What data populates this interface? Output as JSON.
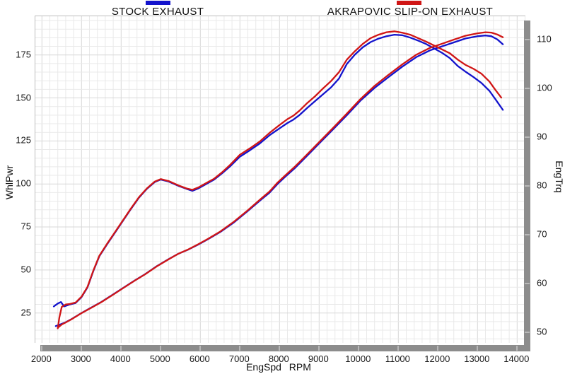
{
  "legend": [
    {
      "label": "STOCK EXHAUST",
      "color": "#1313cc"
    },
    {
      "label": "AKRAPOVIC SLIP-ON EXHAUST",
      "color": "#d01616"
    }
  ],
  "chart_data": {
    "type": "line",
    "title": "",
    "xlabel": "EngSpd RPM",
    "x_range": [
      2000,
      14200
    ],
    "x_ticks": [
      2000,
      3000,
      4000,
      5000,
      6000,
      7000,
      8000,
      9000,
      10000,
      11000,
      12000,
      13000,
      14000
    ],
    "x_minor_step": 200,
    "grid": true,
    "legend_position": "top",
    "left_axis": {
      "label": "WhlPwr",
      "ticks": [
        25,
        50,
        75,
        100,
        125,
        150,
        175
      ],
      "range": [
        7,
        197
      ]
    },
    "right_axis": {
      "label": "EngTrq",
      "ticks": [
        50,
        60,
        70,
        80,
        90,
        100,
        110
      ],
      "range": [
        47,
        115
      ]
    },
    "series": [
      {
        "name": "STOCK EXHAUST - WhlPwr",
        "legend": "STOCK EXHAUST",
        "axis": "left",
        "color": "#1313cc",
        "points": [
          [
            2350,
            17.4
          ],
          [
            2450,
            18.2
          ],
          [
            2600,
            19.6
          ],
          [
            2750,
            21.5
          ],
          [
            3000,
            25.0
          ],
          [
            3250,
            28.2
          ],
          [
            3500,
            31.4
          ],
          [
            3800,
            35.8
          ],
          [
            4100,
            40.3
          ],
          [
            4350,
            44.0
          ],
          [
            4600,
            47.5
          ],
          [
            4900,
            52.2
          ],
          [
            5200,
            56.3
          ],
          [
            5450,
            59.5
          ],
          [
            5700,
            61.9
          ],
          [
            5950,
            64.8
          ],
          [
            6200,
            68.0
          ],
          [
            6500,
            72.0
          ],
          [
            6850,
            77.7
          ],
          [
            7200,
            84.3
          ],
          [
            7550,
            91.2
          ],
          [
            7750,
            95.0
          ],
          [
            7950,
            100.0
          ],
          [
            8150,
            104.3
          ],
          [
            8400,
            109.5
          ],
          [
            8650,
            115.3
          ],
          [
            9000,
            123.5
          ],
          [
            9350,
            131.7
          ],
          [
            9700,
            140.0
          ],
          [
            10050,
            148.6
          ],
          [
            10400,
            155.8
          ],
          [
            10750,
            162.1
          ],
          [
            11100,
            168.2
          ],
          [
            11450,
            173.7
          ],
          [
            11800,
            177.7
          ],
          [
            12100,
            180.0
          ],
          [
            12400,
            182.3
          ],
          [
            12700,
            184.6
          ],
          [
            13000,
            185.9
          ],
          [
            13200,
            186.3
          ],
          [
            13350,
            185.9
          ],
          [
            13500,
            184.0
          ],
          [
            13640,
            181.2
          ]
        ]
      },
      {
        "name": "AKRAPOVIC SLIP-ON EXHAUST - WhlPwr",
        "legend": "AKRAPOVIC SLIP-ON EXHAUST",
        "axis": "left",
        "color": "#d01616",
        "points": [
          [
            2400,
            16.4
          ],
          [
            2500,
            18.3
          ],
          [
            2600,
            19.5
          ],
          [
            2750,
            21.4
          ],
          [
            3000,
            24.9
          ],
          [
            3250,
            28.1
          ],
          [
            3500,
            31.3
          ],
          [
            3800,
            35.7
          ],
          [
            4100,
            40.2
          ],
          [
            4350,
            43.9
          ],
          [
            4600,
            47.4
          ],
          [
            4900,
            52.1
          ],
          [
            5200,
            56.2
          ],
          [
            5450,
            59.5
          ],
          [
            5700,
            62.0
          ],
          [
            5950,
            65.0
          ],
          [
            6200,
            68.2
          ],
          [
            6500,
            72.3
          ],
          [
            6850,
            78.1
          ],
          [
            7200,
            84.7
          ],
          [
            7550,
            91.8
          ],
          [
            7750,
            95.7
          ],
          [
            7950,
            100.8
          ],
          [
            8150,
            105.1
          ],
          [
            8400,
            110.3
          ],
          [
            8650,
            116.1
          ],
          [
            9000,
            124.3
          ],
          [
            9350,
            132.5
          ],
          [
            9700,
            140.9
          ],
          [
            10050,
            149.5
          ],
          [
            10400,
            157.0
          ],
          [
            10750,
            163.4
          ],
          [
            11100,
            169.5
          ],
          [
            11450,
            175.1
          ],
          [
            11800,
            179.1
          ],
          [
            12100,
            181.5
          ],
          [
            12400,
            183.9
          ],
          [
            12700,
            186.2
          ],
          [
            13000,
            187.6
          ],
          [
            13200,
            188.2
          ],
          [
            13350,
            188.0
          ],
          [
            13500,
            186.9
          ],
          [
            13640,
            185.3
          ]
        ]
      },
      {
        "name": "STOCK EXHAUST - EngTrq",
        "legend": "STOCK EXHAUST",
        "axis": "right",
        "color": "#1313cc",
        "points": [
          [
            2300,
            55.3
          ],
          [
            2400,
            55.9
          ],
          [
            2480,
            56.2
          ],
          [
            2560,
            55.3
          ],
          [
            2700,
            55.7
          ],
          [
            2850,
            56.0
          ],
          [
            3000,
            57.2
          ],
          [
            3150,
            59.2
          ],
          [
            3300,
            62.6
          ],
          [
            3450,
            65.6
          ],
          [
            3650,
            68.1
          ],
          [
            3850,
            70.5
          ],
          [
            4050,
            72.9
          ],
          [
            4250,
            75.3
          ],
          [
            4450,
            77.6
          ],
          [
            4650,
            79.4
          ],
          [
            4850,
            80.8
          ],
          [
            5000,
            81.3
          ],
          [
            5200,
            80.9
          ],
          [
            5450,
            80.0
          ],
          [
            5650,
            79.4
          ],
          [
            5800,
            79.0
          ],
          [
            5950,
            79.5
          ],
          [
            6150,
            80.4
          ],
          [
            6350,
            81.3
          ],
          [
            6550,
            82.6
          ],
          [
            6750,
            84.0
          ],
          [
            7000,
            86.0
          ],
          [
            7250,
            87.3
          ],
          [
            7500,
            88.7
          ],
          [
            7750,
            90.4
          ],
          [
            8000,
            91.8
          ],
          [
            8200,
            92.9
          ],
          [
            8350,
            93.6
          ],
          [
            8500,
            94.5
          ],
          [
            8700,
            96.0
          ],
          [
            8900,
            97.4
          ],
          [
            9100,
            98.8
          ],
          [
            9300,
            100.2
          ],
          [
            9500,
            102.0
          ],
          [
            9700,
            105.0
          ],
          [
            9900,
            106.9
          ],
          [
            10100,
            108.4
          ],
          [
            10300,
            109.5
          ],
          [
            10500,
            110.2
          ],
          [
            10700,
            110.7
          ],
          [
            10900,
            111.0
          ],
          [
            11100,
            110.9
          ],
          [
            11300,
            110.4
          ],
          [
            11500,
            109.8
          ],
          [
            11700,
            109.1
          ],
          [
            11900,
            108.2
          ],
          [
            12100,
            107.3
          ],
          [
            12300,
            106.2
          ],
          [
            12500,
            104.6
          ],
          [
            12700,
            103.4
          ],
          [
            12900,
            102.3
          ],
          [
            13100,
            101.1
          ],
          [
            13300,
            99.5
          ],
          [
            13450,
            97.8
          ],
          [
            13640,
            95.6
          ]
        ]
      },
      {
        "name": "AKRAPOVIC SLIP-ON EXHAUST - EngTrq",
        "legend": "AKRAPOVIC SLIP-ON EXHAUST",
        "axis": "right",
        "color": "#d01616",
        "points": [
          [
            2400,
            50.8
          ],
          [
            2440,
            53.0
          ],
          [
            2500,
            55.2
          ],
          [
            2600,
            55.7
          ],
          [
            2700,
            55.8
          ],
          [
            2850,
            56.1
          ],
          [
            3000,
            57.3
          ],
          [
            3150,
            59.3
          ],
          [
            3300,
            62.7
          ],
          [
            3450,
            65.7
          ],
          [
            3650,
            68.2
          ],
          [
            3850,
            70.6
          ],
          [
            4050,
            73.0
          ],
          [
            4250,
            75.4
          ],
          [
            4450,
            77.7
          ],
          [
            4650,
            79.5
          ],
          [
            4850,
            80.9
          ],
          [
            5000,
            81.4
          ],
          [
            5200,
            81.0
          ],
          [
            5450,
            80.1
          ],
          [
            5650,
            79.5
          ],
          [
            5800,
            79.2
          ],
          [
            5950,
            79.7
          ],
          [
            6150,
            80.6
          ],
          [
            6350,
            81.5
          ],
          [
            6550,
            82.8
          ],
          [
            6750,
            84.3
          ],
          [
            7000,
            86.4
          ],
          [
            7250,
            87.7
          ],
          [
            7500,
            89.1
          ],
          [
            7750,
            90.9
          ],
          [
            8000,
            92.5
          ],
          [
            8200,
            93.7
          ],
          [
            8350,
            94.4
          ],
          [
            8500,
            95.4
          ],
          [
            8700,
            97.0
          ],
          [
            8900,
            98.4
          ],
          [
            9100,
            100.0
          ],
          [
            9300,
            101.5
          ],
          [
            9500,
            103.3
          ],
          [
            9700,
            105.9
          ],
          [
            9900,
            107.6
          ],
          [
            10100,
            109.1
          ],
          [
            10300,
            110.3
          ],
          [
            10500,
            111.0
          ],
          [
            10700,
            111.5
          ],
          [
            10900,
            111.7
          ],
          [
            11100,
            111.4
          ],
          [
            11300,
            111.0
          ],
          [
            11500,
            110.3
          ],
          [
            11700,
            109.6
          ],
          [
            11900,
            108.8
          ],
          [
            12100,
            108.0
          ],
          [
            12300,
            107.2
          ],
          [
            12500,
            105.9
          ],
          [
            12700,
            104.8
          ],
          [
            12900,
            104.0
          ],
          [
            13100,
            103.0
          ],
          [
            13300,
            101.4
          ],
          [
            13450,
            99.7
          ],
          [
            13600,
            98.1
          ]
        ]
      }
    ]
  }
}
